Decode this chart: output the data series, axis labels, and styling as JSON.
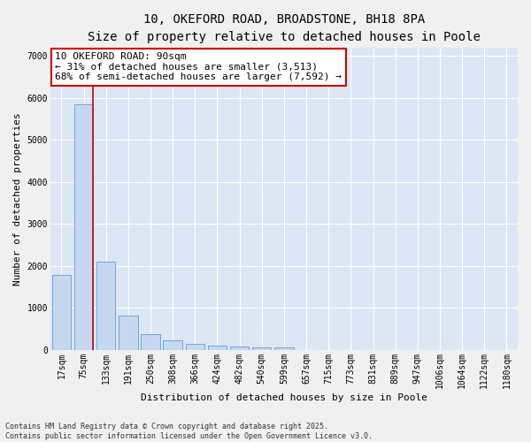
{
  "title_line1": "10, OKEFORD ROAD, BROADSTONE, BH18 8PA",
  "title_line2": "Size of property relative to detached houses in Poole",
  "xlabel": "Distribution of detached houses by size in Poole",
  "ylabel": "Number of detached properties",
  "categories": [
    "17sqm",
    "75sqm",
    "133sqm",
    "191sqm",
    "250sqm",
    "308sqm",
    "366sqm",
    "424sqm",
    "482sqm",
    "540sqm",
    "599sqm",
    "657sqm",
    "715sqm",
    "773sqm",
    "831sqm",
    "889sqm",
    "947sqm",
    "1006sqm",
    "1064sqm",
    "1122sqm",
    "1180sqm"
  ],
  "values": [
    1780,
    5850,
    2100,
    820,
    370,
    215,
    130,
    95,
    75,
    60,
    50,
    0,
    0,
    0,
    0,
    0,
    0,
    0,
    0,
    0,
    0
  ],
  "bar_color": "#c5d8f0",
  "bar_edge_color": "#6fa8d8",
  "vline_x_bar_index": 1,
  "vline_color": "#cc0000",
  "annotation_line1": "10 OKEFORD ROAD: 90sqm",
  "annotation_line2": "← 31% of detached houses are smaller (3,513)",
  "annotation_line3": "68% of semi-detached houses are larger (7,592) →",
  "annotation_box_color": "#cc0000",
  "annotation_bg": "#ffffff",
  "ylim": [
    0,
    7200
  ],
  "yticks": [
    0,
    1000,
    2000,
    3000,
    4000,
    5000,
    6000,
    7000
  ],
  "fig_bg_color": "#f0f0f0",
  "plot_bg_color": "#dce6f5",
  "grid_color": "#ffffff",
  "footer_line1": "Contains HM Land Registry data © Crown copyright and database right 2025.",
  "footer_line2": "Contains public sector information licensed under the Open Government Licence v3.0.",
  "title1_fontsize": 10,
  "title2_fontsize": 9,
  "axis_label_fontsize": 8,
  "tick_fontsize": 7,
  "annotation_fontsize": 8,
  "footer_fontsize": 6
}
